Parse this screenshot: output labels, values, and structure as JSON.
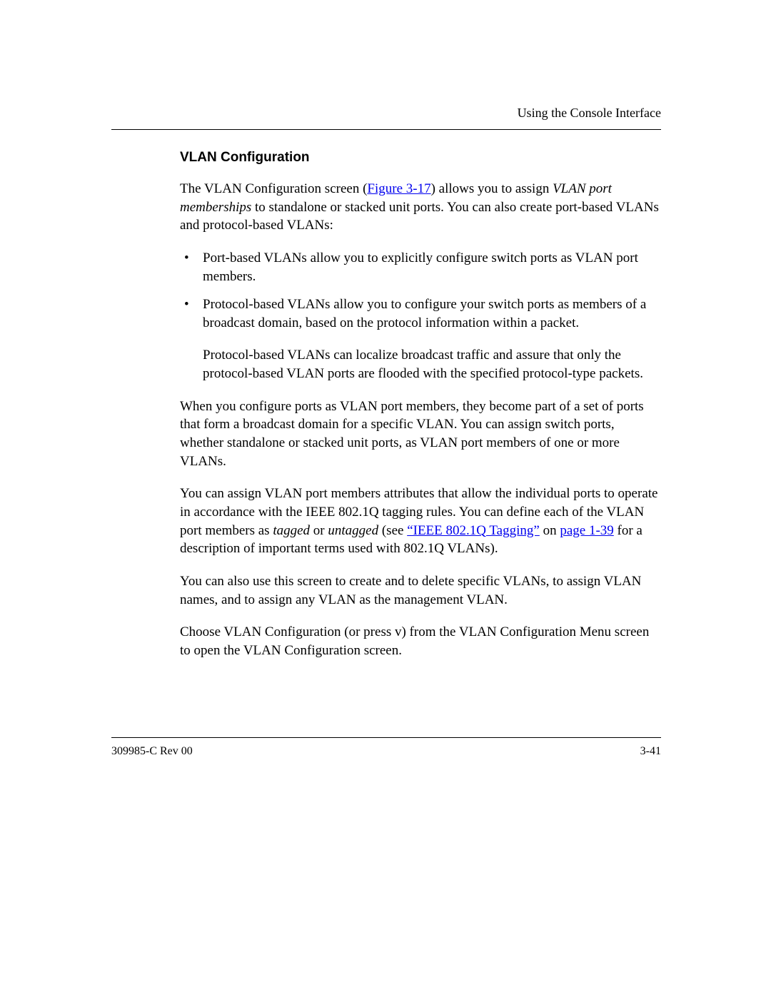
{
  "header": {
    "running_title": "Using the Console Interface"
  },
  "section": {
    "title": "VLAN Configuration"
  },
  "p1": {
    "t1": "The VLAN Configuration screen (",
    "link1": "Figure 3-17",
    "t2": ") allows you to assign ",
    "italic1": "VLAN port memberships",
    "t3": " to standalone or stacked unit ports. You can also create port-based VLANs and protocol-based VLANs:"
  },
  "bullets": {
    "b1": "Port-based VLANs allow you to explicitly configure switch ports as VLAN port members.",
    "b2": "Protocol-based VLANs allow you to configure your switch ports as members of a broadcast domain, based on the protocol information within a packet."
  },
  "sub1": "Protocol-based VLANs can localize broadcast traffic and assure that only the protocol-based VLAN ports are flooded with the specified protocol-type packets.",
  "p2": "When you configure ports as VLAN port members, they become part of a set of ports that form a broadcast domain for a specific VLAN. You can assign switch ports, whether standalone or stacked unit ports, as VLAN port members of one or more VLANs.",
  "p3": {
    "t1": "You can assign VLAN port members attributes that allow the individual ports to operate in accordance with the IEEE 802.1Q tagging rules. You can define each of the VLAN port members as ",
    "italic1": "tagged",
    "t2": " or ",
    "italic2": "untagged",
    "t3": " (see ",
    "link1": "“IEEE 802.1Q Tagging”",
    "t4": " on ",
    "link2": "page 1-39",
    "t5": " for a description of important terms used with 802.1Q VLANs)."
  },
  "p4": "You can also use this screen to create and to delete specific VLANs, to assign VLAN names, and to assign any VLAN as the management VLAN.",
  "p5": "Choose VLAN Configuration (or press v) from the VLAN Configuration Menu screen to open the VLAN Configuration screen.",
  "footer": {
    "doc_id": "309985-C Rev 00",
    "page_num": "3-41"
  }
}
